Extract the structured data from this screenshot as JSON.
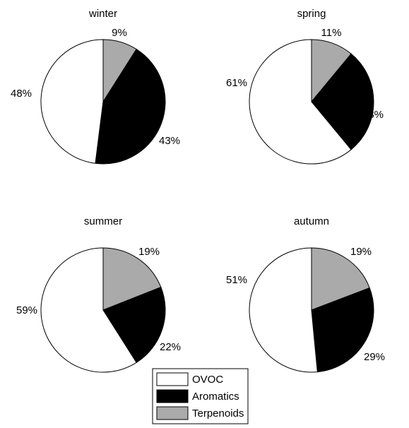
{
  "chart_data": [
    {
      "type": "pie",
      "title": "winter",
      "categories": [
        "Terpenoids",
        "Aromatics",
        "OVOC"
      ],
      "values": [
        9,
        43,
        48
      ],
      "labels": [
        "9%",
        "43%",
        "48%"
      ]
    },
    {
      "type": "pie",
      "title": "spring",
      "categories": [
        "Terpenoids",
        "Aromatics",
        "OVOC"
      ],
      "values": [
        11,
        28,
        61
      ],
      "labels": [
        "11%",
        "28%",
        "61%"
      ]
    },
    {
      "type": "pie",
      "title": "summer",
      "categories": [
        "Terpenoids",
        "Aromatics",
        "OVOC"
      ],
      "values": [
        19,
        22,
        59
      ],
      "labels": [
        "19%",
        "22%",
        "59%"
      ]
    },
    {
      "type": "pie",
      "title": "autumn",
      "categories": [
        "Terpenoids",
        "Aromatics",
        "OVOC"
      ],
      "values": [
        19,
        29,
        51
      ],
      "labels": [
        "19%",
        "29%",
        "51%"
      ]
    }
  ],
  "legend": {
    "items": [
      {
        "name": "OVOC",
        "color": "#ffffff"
      },
      {
        "name": "Aromatics",
        "color": "#000000"
      },
      {
        "name": "Terpenoids",
        "color": "#aaaaaa"
      }
    ],
    "placement": "bottom-center"
  },
  "colors": {
    "Terpenoids": "#aaaaaa",
    "Aromatics": "#000000",
    "OVOC": "#ffffff",
    "outline": "#000000"
  }
}
